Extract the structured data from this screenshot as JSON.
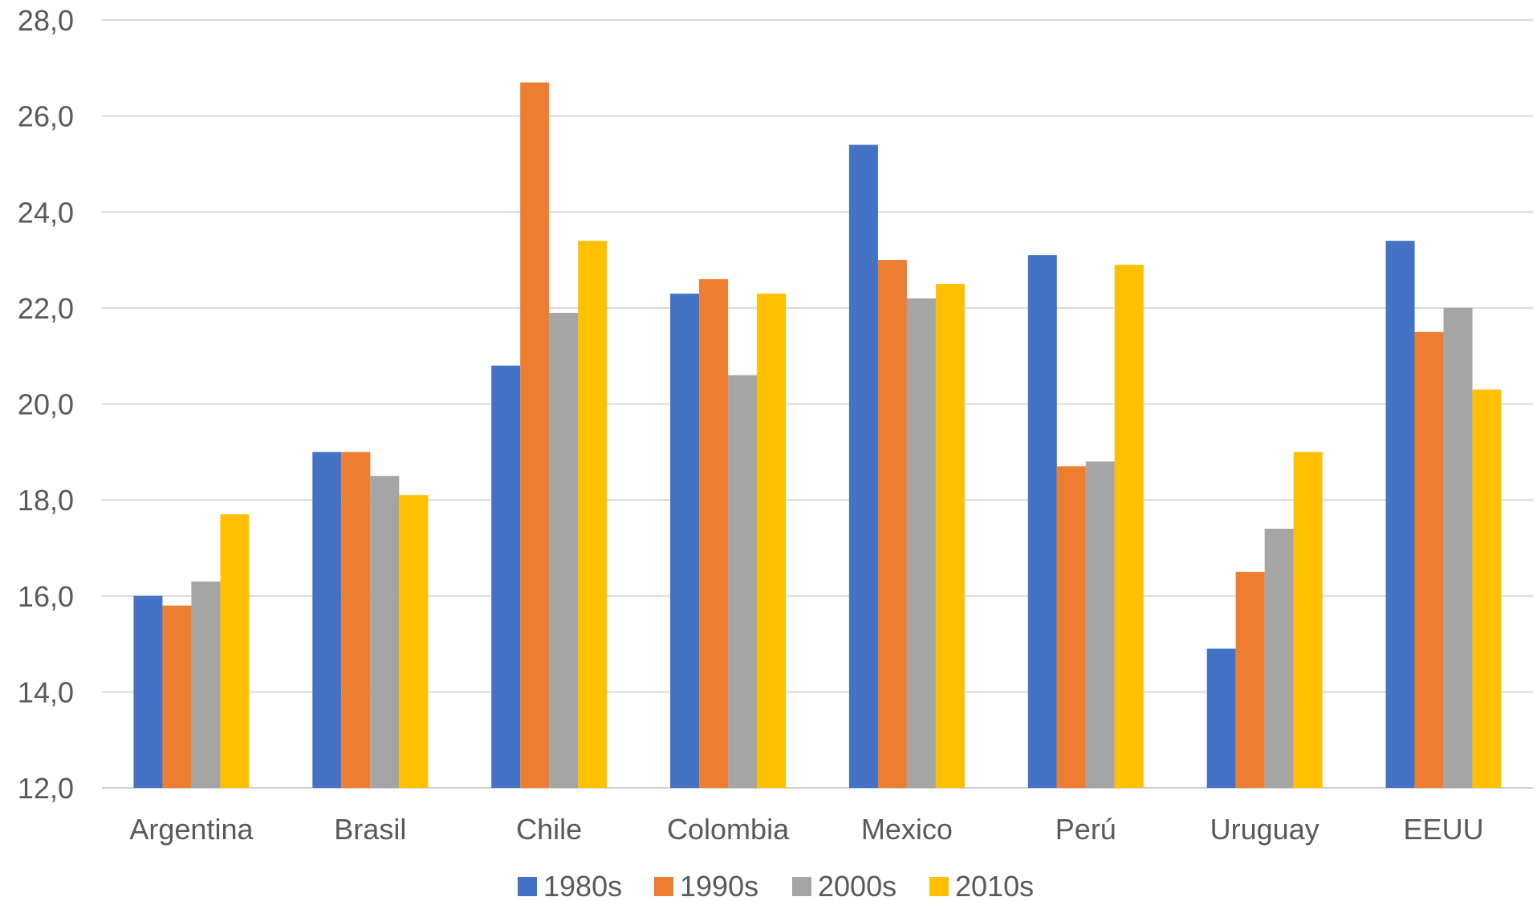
{
  "chart_data": {
    "type": "bar",
    "title": "",
    "xlabel": "",
    "ylabel": "",
    "ylim": [
      12,
      28
    ],
    "y_tick_step": 2,
    "y_tick_labels": [
      "12,0",
      "14,0",
      "16,0",
      "18,0",
      "20,0",
      "22,0",
      "24,0",
      "26,0",
      "28,0"
    ],
    "grid": true,
    "legend_position": "bottom",
    "categories": [
      "Argentina",
      "Brasil",
      "Chile",
      "Colombia",
      "Mexico",
      "Perú",
      "Uruguay",
      "EEUU"
    ],
    "series": [
      {
        "name": "1980s",
        "color": "#4472C4",
        "values": [
          16.0,
          19.0,
          20.8,
          22.3,
          25.4,
          23.1,
          14.9,
          23.4
        ]
      },
      {
        "name": "1990s",
        "color": "#ED7D31",
        "values": [
          15.8,
          19.0,
          26.7,
          22.6,
          23.0,
          18.7,
          16.5,
          21.5
        ]
      },
      {
        "name": "2000s",
        "color": "#A5A5A5",
        "values": [
          16.3,
          18.5,
          21.9,
          20.6,
          22.2,
          18.8,
          17.4,
          22.0
        ]
      },
      {
        "name": "2010s",
        "color": "#FFC000",
        "values": [
          17.7,
          18.1,
          23.4,
          22.3,
          22.5,
          22.9,
          19.0,
          20.3
        ]
      }
    ]
  }
}
